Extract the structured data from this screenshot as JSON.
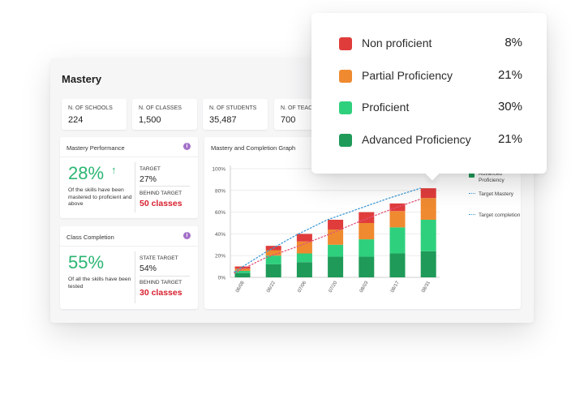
{
  "dashboard": {
    "title": "Mastery",
    "stats": [
      {
        "label": "N. OF SCHOOLS",
        "value": "224"
      },
      {
        "label": "N. OF CLASSES",
        "value": "1,500"
      },
      {
        "label": "N. OF STUDENTS",
        "value": "35,487"
      },
      {
        "label": "N. OF TEAC",
        "value": "700"
      }
    ],
    "mastery_performance": {
      "title": "Mastery Performance",
      "info_icon": "i",
      "big_value": "28%",
      "arrow": "↑",
      "description": "Of the skills have been mastered to proficient and above",
      "target_label": "TARGET",
      "target_value": "27%",
      "behind_label": "BEHIND TARGET",
      "behind_value": "50 classes"
    },
    "class_completion": {
      "title": "Class Completion",
      "info_icon": "i",
      "big_value": "55%",
      "description": "Of all the skills have been tested",
      "target_label": "STATE TARGET",
      "target_value": "54%",
      "behind_label": "BEHIND TARGET",
      "behind_value": "30 classes"
    },
    "graph": {
      "title": "Mastery and Completion Graph"
    }
  },
  "legend": [
    {
      "label": "Non proficient",
      "color": "#e03c3c",
      "kind": "swatch"
    },
    {
      "label": "Partial Proficiency",
      "color": "#ef8a30",
      "kind": "swatch"
    },
    {
      "label": "Proficient",
      "color": "#2fd07d",
      "kind": "swatch"
    },
    {
      "label": "Advanced Proficiency",
      "color": "#1f9a59",
      "kind": "swatch"
    },
    {
      "label": "Target Mastery",
      "color": "#3e9ad6",
      "kind": "dotted"
    },
    {
      "label": "Target completion",
      "color": "#3e9ad6",
      "kind": "dotted"
    }
  ],
  "popup": {
    "rows": [
      {
        "label": "Non proficient",
        "value": "8%",
        "color": "#e03c3c"
      },
      {
        "label": "Partial Proficiency",
        "value": "21%",
        "color": "#ef8a30"
      },
      {
        "label": "Proficient",
        "value": "30%",
        "color": "#2fd07d"
      },
      {
        "label": "Advanced Proficiency",
        "value": "21%",
        "color": "#1f9a59"
      }
    ]
  },
  "chart_data": {
    "type": "bar",
    "stacked": true,
    "title": "Mastery and Completion Graph",
    "categories": [
      "06/08",
      "06/22",
      "07/06",
      "07/20",
      "08/03",
      "08/17",
      "08/31"
    ],
    "ylim": [
      0,
      100
    ],
    "yticks": [
      "0%",
      "20%",
      "40%",
      "60%",
      "80%",
      "100%"
    ],
    "series": [
      {
        "name": "Advanced Proficiency",
        "color": "#1f9a59",
        "values": [
          4,
          12,
          14,
          19,
          19,
          22,
          24
        ]
      },
      {
        "name": "Proficient",
        "color": "#2fd07d",
        "values": [
          2,
          8,
          8,
          11,
          16,
          24,
          29
        ]
      },
      {
        "name": "Partial Proficiency",
        "color": "#ef8a30",
        "values": [
          2,
          5,
          11,
          14,
          15,
          15,
          20
        ]
      },
      {
        "name": "Non proficient",
        "color": "#e03c3c",
        "values": [
          2,
          4,
          7,
          9,
          10,
          7,
          9
        ]
      }
    ],
    "lines": [
      {
        "name": "Target Mastery",
        "color": "#e0557a",
        "values": [
          4,
          18,
          28,
          39,
          51,
          62,
          72
        ]
      },
      {
        "name": "Target completion",
        "color": "#3e9ad6",
        "values": [
          5,
          23,
          39,
          53,
          63,
          73,
          82
        ]
      }
    ],
    "grid": true
  }
}
